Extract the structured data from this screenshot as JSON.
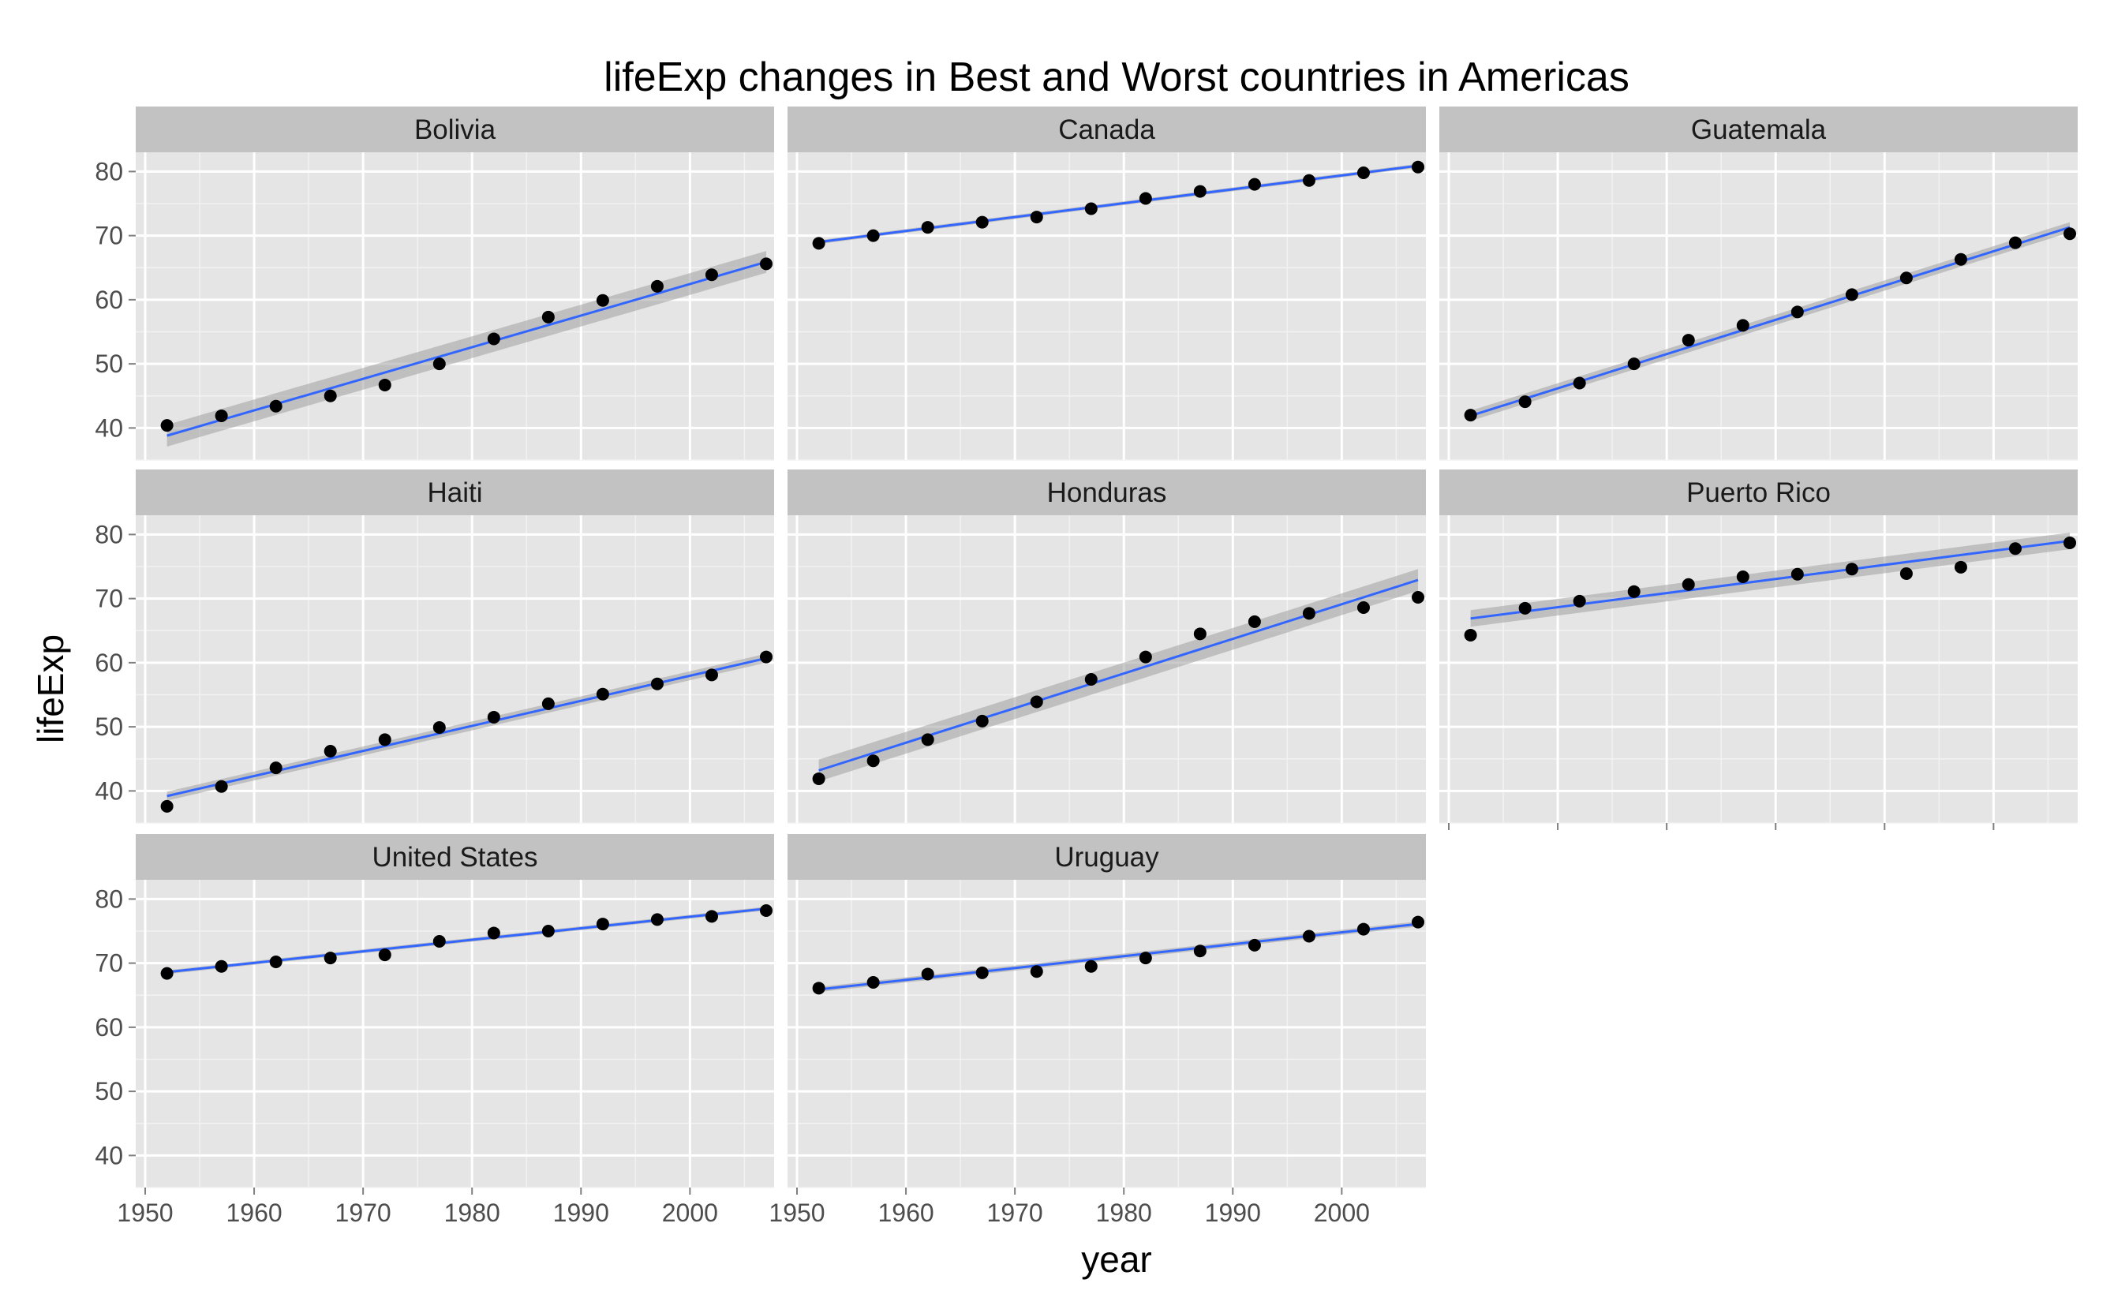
{
  "chart_data": {
    "type": "scatter",
    "title": "lifeExp changes in Best and Worst countries in Americas",
    "xlabel": "year",
    "ylabel": "lifeExp",
    "xlim": [
      1950,
      2007
    ],
    "ylim": [
      35,
      83
    ],
    "x_ticks": [
      "1950",
      "1960",
      "1970",
      "1980",
      "1990",
      "2000"
    ],
    "y_ticks": [
      "40",
      "50",
      "60",
      "70",
      "80"
    ],
    "facet_layout": "3 columns × 3 rows, free x axis labels on bottom panels",
    "grid": true,
    "trend": "linear fit with confidence band",
    "colors": {
      "panel_bg": "#e5e5e5",
      "strip_bg": "#c2c2c2",
      "grid_major": "#ffffff",
      "grid_minor": "#f2f2f2",
      "point": "#000000",
      "fit_line": "#3366ff",
      "band": "#a0a0a0"
    },
    "x": [
      1952,
      1957,
      1962,
      1967,
      1972,
      1977,
      1982,
      1987,
      1992,
      1997,
      2002,
      2007
    ],
    "series": [
      {
        "name": "Bolivia",
        "values": [
          40.4,
          41.9,
          43.4,
          45.0,
          46.7,
          50.0,
          53.9,
          57.3,
          59.9,
          62.1,
          63.9,
          65.6
        ],
        "fit": [
          38.8,
          65.9
        ],
        "band": 1.7
      },
      {
        "name": "Canada",
        "values": [
          68.8,
          70.0,
          71.3,
          72.1,
          72.9,
          74.2,
          75.8,
          76.9,
          78.0,
          78.6,
          79.8,
          80.7
        ],
        "fit": [
          69.0,
          80.9
        ],
        "band": 0.3
      },
      {
        "name": "Guatemala",
        "values": [
          42.0,
          44.1,
          47.0,
          50.0,
          53.7,
          56.0,
          58.1,
          60.8,
          63.4,
          66.3,
          68.9,
          70.3
        ],
        "fit": [
          41.9,
          71.3
        ],
        "band": 0.8
      },
      {
        "name": "Haiti",
        "values": [
          37.6,
          40.7,
          43.6,
          46.2,
          48.0,
          49.9,
          51.5,
          53.6,
          55.1,
          56.7,
          58.1,
          60.9
        ],
        "fit": [
          39.2,
          60.7
        ],
        "band": 0.7
      },
      {
        "name": "Honduras",
        "values": [
          41.9,
          44.7,
          48.0,
          50.9,
          53.9,
          57.4,
          60.9,
          64.5,
          66.4,
          67.7,
          68.6,
          70.2
        ],
        "fit": [
          43.2,
          72.9
        ],
        "band": 1.7
      },
      {
        "name": "Puerto Rico",
        "values": [
          64.3,
          68.5,
          69.6,
          71.1,
          72.2,
          73.4,
          73.8,
          74.6,
          73.9,
          74.9,
          77.8,
          78.7
        ],
        "fit": [
          66.9,
          79.0
        ],
        "band": 1.3
      },
      {
        "name": "United States",
        "values": [
          68.4,
          69.5,
          70.2,
          70.8,
          71.3,
          73.4,
          74.7,
          75.0,
          76.1,
          76.8,
          77.3,
          78.2
        ],
        "fit": [
          68.6,
          78.5
        ],
        "band": 0.3
      },
      {
        "name": "Uruguay",
        "values": [
          66.1,
          67.0,
          68.3,
          68.5,
          68.7,
          69.5,
          70.8,
          71.9,
          72.8,
          74.2,
          75.3,
          76.4
        ],
        "fit": [
          65.9,
          76.1
        ],
        "band": 0.4
      }
    ]
  }
}
